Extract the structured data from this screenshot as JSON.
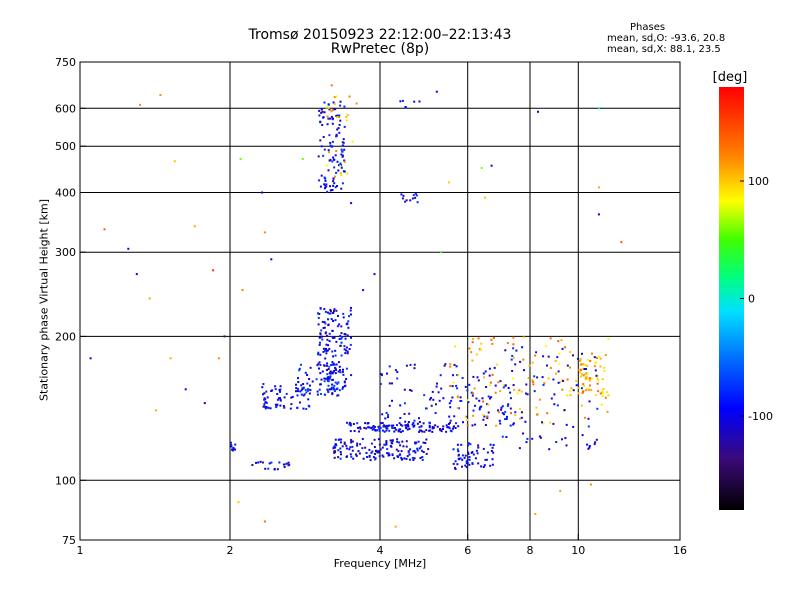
{
  "title_line1": "Tromsø 20150923 22:12:00–22:13:43",
  "title_line2": "RwPretec (8p)",
  "stats": {
    "heading": "Phases",
    "o_line": "mean, sd,O: -93.6, 20.8",
    "x_line": "mean, sd,X:  88.1, 23.5"
  },
  "colorbar": {
    "label": "[deg]",
    "ticks": [
      "100",
      "0",
      "-100"
    ],
    "tick_values": [
      100,
      0,
      -100
    ],
    "range": [
      -180,
      180
    ]
  },
  "chart_data": {
    "type": "scatter",
    "xlabel": "Frequency [MHz]",
    "ylabel": "Stationary phase Virtual Height [km]",
    "x_scale": "log",
    "y_scale": "log",
    "xlim": [
      1,
      16
    ],
    "ylim": [
      75,
      750
    ],
    "x_ticks": [
      1,
      2,
      4,
      6,
      8,
      10,
      16
    ],
    "x_tick_labels": [
      "1",
      "2",
      "4",
      "6",
      "8",
      "10",
      "16"
    ],
    "y_ticks": [
      75,
      100,
      200,
      300,
      400,
      500,
      600,
      750
    ],
    "y_tick_labels": [
      "75",
      "100",
      "200",
      "300",
      "400",
      "500",
      "600",
      "750"
    ],
    "grid": true,
    "grid_x": [
      2,
      4,
      6,
      8,
      10
    ],
    "grid_y": [
      100,
      200,
      300,
      400,
      500,
      600
    ],
    "clusters": [
      {
        "x": [
          3.0,
          3.4
        ],
        "y": [
          400,
          620
        ],
        "phase": -100,
        "count": 110
      },
      {
        "x": [
          3.1,
          3.6
        ],
        "y": [
          430,
          640
        ],
        "phase": 100,
        "count": 25
      },
      {
        "x": [
          4.4,
          4.8
        ],
        "y": [
          380,
          400
        ],
        "phase": -100,
        "count": 12
      },
      {
        "x": [
          4.3,
          4.7
        ],
        "y": [
          600,
          640
        ],
        "phase": -100,
        "count": 5
      },
      {
        "x": [
          3.0,
          3.5
        ],
        "y": [
          150,
          230
        ],
        "phase": -100,
        "count": 170
      },
      {
        "x": [
          2.3,
          2.9
        ],
        "y": [
          140,
          160
        ],
        "phase": -100,
        "count": 70
      },
      {
        "x": [
          2.7,
          3.3
        ],
        "y": [
          150,
          175
        ],
        "phase": -90,
        "count": 55
      },
      {
        "x": [
          3.2,
          5.0
        ],
        "y": [
          110,
          122
        ],
        "phase": -100,
        "count": 150
      },
      {
        "x": [
          3.4,
          5.8
        ],
        "y": [
          126,
          132
        ],
        "phase": -100,
        "count": 120
      },
      {
        "x": [
          4.0,
          7.5
        ],
        "y": [
          130,
          175
        ],
        "phase": -100,
        "count": 130
      },
      {
        "x": [
          5.6,
          6.8
        ],
        "y": [
          105,
          120
        ],
        "phase": -100,
        "count": 60
      },
      {
        "x": [
          5.5,
          11.5
        ],
        "y": [
          130,
          200
        ],
        "phase": 110,
        "count": 120
      },
      {
        "x": [
          7.0,
          11.0
        ],
        "y": [
          115,
          190
        ],
        "phase": -100,
        "count": 90
      },
      {
        "x": [
          10.0,
          11.3
        ],
        "y": [
          150,
          180
        ],
        "phase": 110,
        "count": 50
      },
      {
        "x": [
          2.2,
          2.7
        ],
        "y": [
          105,
          110
        ],
        "phase": -100,
        "count": 20
      },
      {
        "x": [
          2.0,
          2.05
        ],
        "y": [
          115,
          120
        ],
        "phase": -100,
        "count": 10
      }
    ],
    "scatter_points": [
      [
        1.12,
        335,
        140
      ],
      [
        1.25,
        305,
        -100
      ],
      [
        1.3,
        270,
        -100
      ],
      [
        1.38,
        240,
        110
      ],
      [
        1.32,
        610,
        120
      ],
      [
        1.45,
        640,
        120
      ],
      [
        1.55,
        465,
        100
      ],
      [
        1.7,
        340,
        110
      ],
      [
        1.52,
        180,
        110
      ],
      [
        1.63,
        155,
        -100
      ],
      [
        1.78,
        145,
        -100
      ],
      [
        1.9,
        180,
        120
      ],
      [
        1.95,
        200,
        -140
      ],
      [
        2.1,
        470,
        60
      ],
      [
        2.32,
        400,
        -100
      ],
      [
        2.12,
        250,
        120
      ],
      [
        1.85,
        275,
        160
      ],
      [
        1.42,
        140,
        110
      ],
      [
        2.35,
        330,
        120
      ],
      [
        2.42,
        290,
        -100
      ],
      [
        2.08,
        90,
        100
      ],
      [
        2.35,
        82,
        130
      ],
      [
        3.5,
        380,
        -100
      ],
      [
        3.7,
        250,
        -100
      ],
      [
        3.9,
        270,
        -100
      ],
      [
        5.5,
        420,
        100
      ],
      [
        6.4,
        450,
        60
      ],
      [
        6.7,
        455,
        -100
      ],
      [
        6.5,
        390,
        100
      ],
      [
        11.0,
        360,
        -100
      ],
      [
        11.0,
        410,
        110
      ],
      [
        12.2,
        315,
        140
      ],
      [
        8.2,
        85,
        110
      ],
      [
        9.2,
        95,
        110
      ],
      [
        8.3,
        590,
        -100
      ],
      [
        11.0,
        600,
        10
      ],
      [
        5.3,
        300,
        30
      ],
      [
        4.8,
        620,
        -100
      ],
      [
        5.2,
        650,
        -100
      ],
      [
        4.3,
        80,
        110
      ],
      [
        3.2,
        670,
        130
      ],
      [
        2.8,
        470,
        60
      ],
      [
        10.6,
        98,
        120
      ],
      [
        1.05,
        180,
        -100
      ]
    ]
  }
}
